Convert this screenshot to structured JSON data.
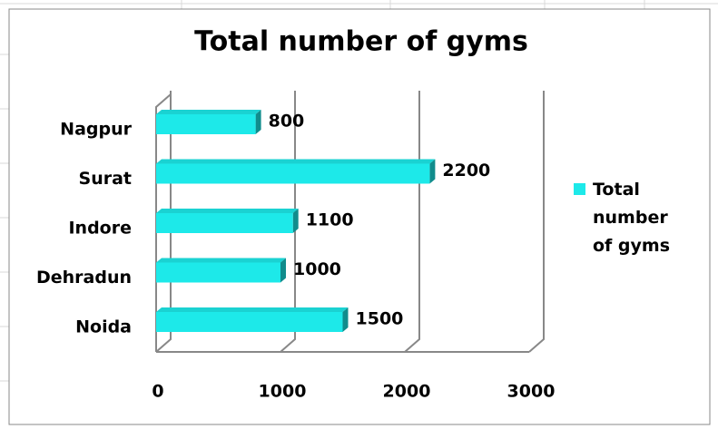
{
  "chart_data": {
    "type": "bar",
    "orientation": "horizontal",
    "title": "Total number of gyms",
    "categories": [
      "Nagpur",
      "Surat",
      "Indore",
      "Dehradun",
      "Noida"
    ],
    "series": [
      {
        "name": "Total number of gyms",
        "color": "#1de9e9",
        "values": [
          800,
          2200,
          1100,
          1000,
          1500
        ]
      }
    ],
    "xlim": [
      0,
      3000
    ],
    "xticks": [
      0,
      1000,
      2000,
      3000
    ],
    "grid": true,
    "legend": "right",
    "data_labels": true
  }
}
